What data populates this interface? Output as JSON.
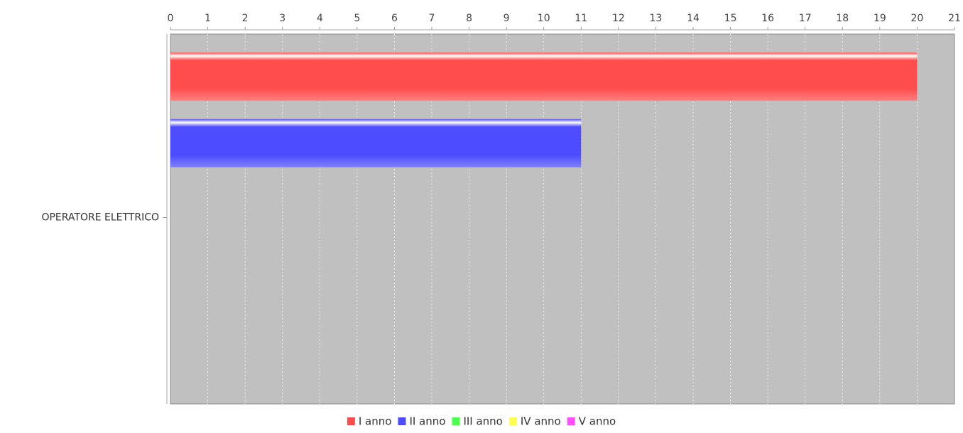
{
  "chart_data": {
    "type": "bar",
    "orientation": "horizontal",
    "categories": [
      "OPERATORE ELETTRICO"
    ],
    "series": [
      {
        "name": "I anno",
        "values": [
          20
        ],
        "color": "#ff4d4d"
      },
      {
        "name": "II anno",
        "values": [
          11
        ],
        "color": "#4d4dff"
      },
      {
        "name": "III anno",
        "values": [
          0
        ],
        "color": "#4dff4d"
      },
      {
        "name": "IV anno",
        "values": [
          0
        ],
        "color": "#ffff4d"
      },
      {
        "name": "V anno",
        "values": [
          0
        ],
        "color": "#ff4dff"
      }
    ],
    "xlim": [
      0,
      21
    ],
    "xticks": [
      0,
      1,
      2,
      3,
      4,
      5,
      6,
      7,
      8,
      9,
      10,
      11,
      12,
      13,
      14,
      15,
      16,
      17,
      18,
      19,
      20,
      21
    ],
    "x_axis_position": "top",
    "grid": true,
    "legend_position": "bottom",
    "plot_background": "#c0c0c0"
  }
}
